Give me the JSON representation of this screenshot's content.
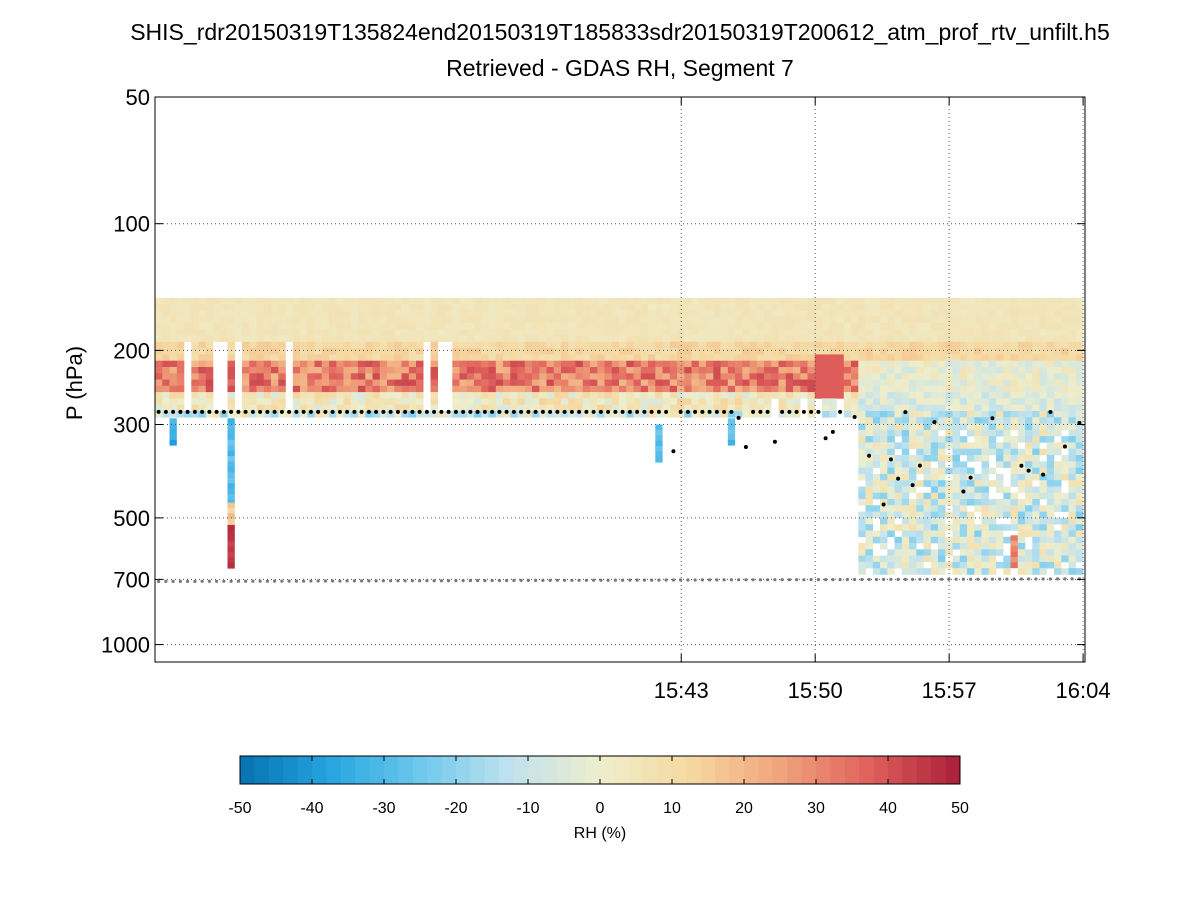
{
  "title": "SHIS_rdr20150319T135824end20150319T185833sdr20150319T200612_atm_prof_rtv_unfilt.h5",
  "subtitle": "Retrieved - GDAS RH, Segment 7",
  "chart_data": {
    "type": "heatmap",
    "ylabel": "P (hPa)",
    "yscale": "log",
    "yreversed": true,
    "ylim": [
      50,
      1100
    ],
    "xlim_minutes": [
      15.5,
      64.1
    ],
    "y_ticks": [
      50,
      100,
      200,
      300,
      500,
      700,
      1000
    ],
    "y_tick_labels": [
      "50",
      "100",
      "200",
      "300",
      "500",
      "700",
      "1000"
    ],
    "x_ticks_minutes": [
      43,
      50,
      57,
      64
    ],
    "x_tick_labels": [
      "15:43",
      "15:50",
      "15:57",
      "16:04"
    ],
    "grid": true,
    "colorbar": {
      "label": "RH (%)",
      "range": [
        -50,
        50
      ],
      "tick_values": [
        -50,
        -40,
        -30,
        -20,
        -10,
        0,
        10,
        20,
        30,
        40,
        50
      ],
      "tick_labels": [
        "-50",
        "-40",
        "-30",
        "-20",
        "-10",
        "0",
        "10",
        "20",
        "30",
        "40",
        "50"
      ],
      "colormap": [
        "#0571b0",
        "#26a5e0",
        "#6dc8ec",
        "#c0e2ee",
        "#eeeecc",
        "#f6d8a0",
        "#f0a47c",
        "#e0605c",
        "#a81e38"
      ]
    },
    "cloud_top_pressure_approx_hPa": 280,
    "surface_pressure_approx_hPa": 700,
    "profile_top_pressure_hPa": 150
  }
}
